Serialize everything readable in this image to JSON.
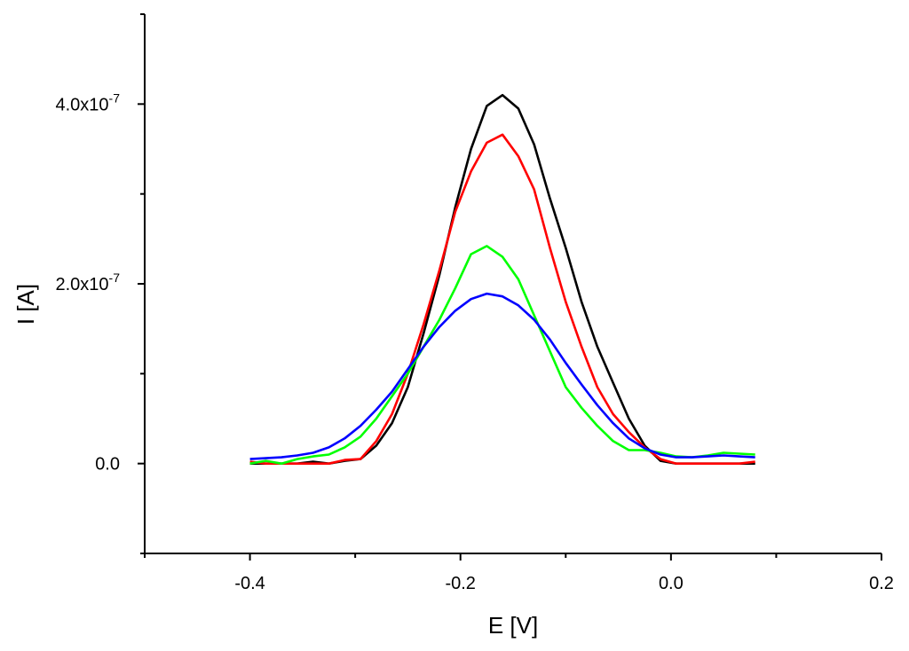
{
  "chart_data": {
    "type": "line",
    "xlabel": "E [V]",
    "ylabel": "I [A]",
    "xlim": [
      -0.5,
      0.2
    ],
    "ylim": [
      -1e-07,
      5e-07
    ],
    "grid": false,
    "x_ticks": [
      {
        "value": -0.4,
        "label": "-0.4"
      },
      {
        "value": -0.2,
        "label": "-0.2"
      },
      {
        "value": 0.0,
        "label": "0.0"
      },
      {
        "value": 0.2,
        "label": "0.2"
      }
    ],
    "x_minor_ticks": [
      -0.5,
      -0.3,
      -0.1,
      0.1
    ],
    "y_ticks": [
      {
        "value": 0.0,
        "label": "0.0",
        "exponent": ""
      },
      {
        "value": 2e-07,
        "label": "2.0x10",
        "exponent": "-7"
      },
      {
        "value": 4e-07,
        "label": "4.0x10",
        "exponent": "-7"
      }
    ],
    "y_minor_ticks": [
      1e-07,
      3e-07,
      -1e-07,
      5e-07
    ],
    "series": [
      {
        "color": "#000000",
        "x": [
          -0.4,
          -0.385,
          -0.37,
          -0.355,
          -0.34,
          -0.325,
          -0.31,
          -0.295,
          -0.28,
          -0.265,
          -0.25,
          -0.235,
          -0.22,
          -0.205,
          -0.19,
          -0.175,
          -0.16,
          -0.145,
          -0.13,
          -0.115,
          -0.1,
          -0.085,
          -0.07,
          -0.055,
          -0.04,
          -0.025,
          -0.01,
          0.005,
          0.02,
          0.035,
          0.05,
          0.065,
          0.08
        ],
        "y": [
          0.0,
          0.0,
          0.0,
          0.0,
          2e-09,
          0.0,
          3e-09,
          5e-09,
          2e-08,
          4.5e-08,
          8.5e-08,
          1.45e-07,
          2.1e-07,
          2.85e-07,
          3.5e-07,
          3.98e-07,
          4.1e-07,
          3.95e-07,
          3.55e-07,
          2.95e-07,
          2.4e-07,
          1.8e-07,
          1.3e-07,
          9e-08,
          5e-08,
          2e-08,
          3e-09,
          0.0,
          0.0,
          0.0,
          0.0,
          0.0,
          0.0
        ]
      },
      {
        "color": "#ff0000",
        "x": [
          -0.4,
          -0.385,
          -0.37,
          -0.355,
          -0.34,
          -0.325,
          -0.31,
          -0.295,
          -0.28,
          -0.265,
          -0.25,
          -0.235,
          -0.22,
          -0.205,
          -0.19,
          -0.175,
          -0.16,
          -0.145,
          -0.13,
          -0.115,
          -0.1,
          -0.085,
          -0.07,
          -0.055,
          -0.04,
          -0.025,
          -0.01,
          0.005,
          0.02,
          0.035,
          0.05,
          0.065,
          0.08
        ],
        "y": [
          2e-09,
          0.0,
          0.0,
          0.0,
          0.0,
          0.0,
          4e-09,
          5e-09,
          2.5e-08,
          5.5e-08,
          1e-07,
          1.55e-07,
          2.15e-07,
          2.8e-07,
          3.25e-07,
          3.57e-07,
          3.66e-07,
          3.42e-07,
          3.05e-07,
          2.4e-07,
          1.8e-07,
          1.3e-07,
          8.5e-08,
          5.5e-08,
          3.5e-08,
          1.8e-08,
          5e-09,
          0.0,
          0.0,
          0.0,
          0.0,
          0.0,
          2e-09
        ]
      },
      {
        "color": "#00ff00",
        "x": [
          -0.4,
          -0.385,
          -0.37,
          -0.355,
          -0.34,
          -0.325,
          -0.31,
          -0.295,
          -0.28,
          -0.265,
          -0.25,
          -0.235,
          -0.22,
          -0.205,
          -0.19,
          -0.175,
          -0.16,
          -0.145,
          -0.13,
          -0.115,
          -0.1,
          -0.085,
          -0.07,
          -0.055,
          -0.04,
          -0.025,
          -0.01,
          0.005,
          0.02,
          0.035,
          0.05,
          0.065,
          0.08
        ],
        "y": [
          0.0,
          3e-09,
          0.0,
          5e-09,
          8e-09,
          1e-08,
          1.8e-08,
          3e-08,
          5e-08,
          7.5e-08,
          1e-07,
          1.3e-07,
          1.6e-07,
          1.95e-07,
          2.33e-07,
          2.42e-07,
          2.3e-07,
          2.05e-07,
          1.65e-07,
          1.25e-07,
          8.5e-08,
          6.2e-08,
          4.2e-08,
          2.5e-08,
          1.5e-08,
          1.5e-08,
          1.2e-08,
          8e-09,
          7e-09,
          9e-09,
          1.2e-08,
          1.1e-08,
          1e-08
        ]
      },
      {
        "color": "#0000ff",
        "x": [
          -0.4,
          -0.385,
          -0.37,
          -0.355,
          -0.34,
          -0.325,
          -0.31,
          -0.295,
          -0.28,
          -0.265,
          -0.25,
          -0.235,
          -0.22,
          -0.205,
          -0.19,
          -0.175,
          -0.16,
          -0.145,
          -0.13,
          -0.115,
          -0.1,
          -0.085,
          -0.07,
          -0.055,
          -0.04,
          -0.025,
          -0.01,
          0.005,
          0.02,
          0.035,
          0.05,
          0.065,
          0.08
        ],
        "y": [
          5e-09,
          6e-09,
          7e-09,
          9e-09,
          1.2e-08,
          1.8e-08,
          2.8e-08,
          4.2e-08,
          6e-08,
          8e-08,
          1.05e-07,
          1.3e-07,
          1.52e-07,
          1.7e-07,
          1.83e-07,
          1.89e-07,
          1.86e-07,
          1.76e-07,
          1.6e-07,
          1.38e-07,
          1.12e-07,
          8.8e-08,
          6.5e-08,
          4.5e-08,
          2.8e-08,
          1.7e-08,
          1e-08,
          7e-09,
          7e-09,
          8e-09,
          9e-09,
          8e-09,
          7e-09
        ]
      }
    ]
  }
}
